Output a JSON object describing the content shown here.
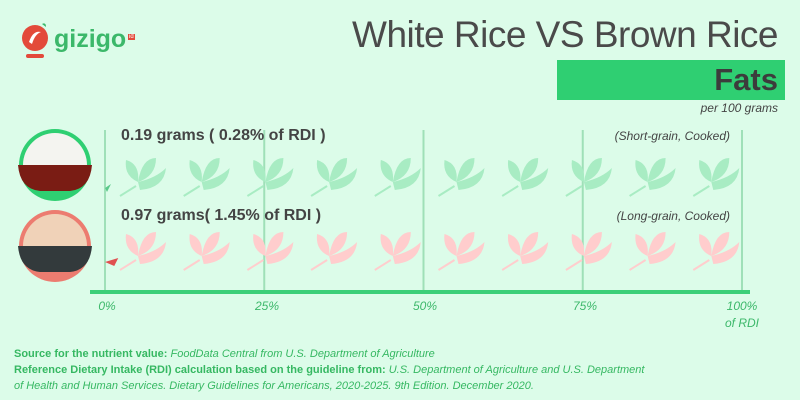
{
  "logo": {
    "text": "gizigo",
    "suffix": "id"
  },
  "header": {
    "title": "White Rice VS Brown Rice",
    "subtitle": "Fats",
    "unit": "per 100 grams"
  },
  "colors": {
    "accent": "#2fcf72",
    "white_rice": "#a8ecc3",
    "brown_rice": "#ffcdcd",
    "brown_bar": "#e05050",
    "white_bar": "#5cc98a"
  },
  "rows": [
    {
      "label": "0.19 grams ( 0.28% of RDI )",
      "note": "(Short-grain, Cooked)",
      "icon": "white-rice-bowl"
    },
    {
      "label": "0.97 grams( 1.45% of RDI )",
      "note": "(Long-grain, Cooked)",
      "icon": "brown-rice-bowl"
    }
  ],
  "axis": {
    "ticks": [
      "0%",
      "25%",
      "50%",
      "75%",
      "100%"
    ],
    "unit": "of RDI"
  },
  "source": {
    "line1_label": "Source for the nutrient value:",
    "line1_text": "FoodData Central from U.S. Department of Agriculture",
    "line2_label": "Reference Dietary Intake (RDI) calculation based on the guideline from:",
    "line2_text": "U.S. Department of Agriculture and U.S. Department",
    "line3_text": "of Health and Human Services. Dietary Guidelines for Americans, 2020-2025. 9th Edition. December 2020."
  },
  "chart_data": {
    "type": "bar",
    "orientation": "horizontal",
    "categories": [
      "White Rice (Short-grain, Cooked)",
      "Brown Rice (Long-grain, Cooked)"
    ],
    "values": [
      0.28,
      1.45
    ],
    "grams": [
      0.19,
      0.97
    ],
    "xlim": [
      0,
      100
    ],
    "xticks": [
      0,
      25,
      50,
      75,
      100
    ],
    "xlabel": "of RDI",
    "grid": true
  }
}
